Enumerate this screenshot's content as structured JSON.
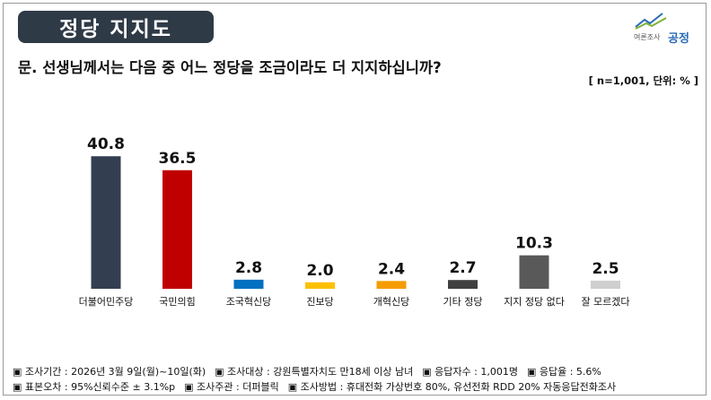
{
  "header": {
    "title": "정당 지지도",
    "logo_small": "여론조사",
    "logo_big": "공정",
    "question": "문. 선생님께서는 다음 중 어느 정당을 조금이라도 더 지지하십니까?",
    "sample_note": "[ n=1,001, 단위: % ]"
  },
  "chart_data": {
    "type": "bar",
    "categories": [
      "더불어민주당",
      "국민의힘",
      "조국혁신당",
      "진보당",
      "개혁신당",
      "기타 정당",
      "지지 정당 없다",
      "잘 모르겠다"
    ],
    "values": [
      40.8,
      36.5,
      2.8,
      2.0,
      2.4,
      2.7,
      10.3,
      2.5
    ],
    "value_labels": [
      "40.8",
      "36.5",
      "2.8",
      "2.0",
      "2.4",
      "2.7",
      "10.3",
      "2.5"
    ],
    "colors": [
      "#333f50",
      "#c00000",
      "#0070c0",
      "#ffc000",
      "#f59c00",
      "#404040",
      "#595959",
      "#cfcfcf"
    ],
    "ylim": [
      0,
      45
    ],
    "grid": false,
    "legend": "none"
  },
  "footer": {
    "row1": [
      "▣ 조사기간 : 2026년 3월 9일(월)~10일(화)",
      "▣ 조사대상 : 강원특별자치도 만18세 이상 남녀",
      "▣ 응답자수 : 1,001명",
      "▣ 응답율 : 5.6%"
    ],
    "row2": [
      "▣ 표본오차 : 95%신뢰수준 ± 3.1%p",
      "▣ 조사주관 : 더퍼블릭",
      "▣ 조사방법 : 휴대전화 가상번호 80%, 유선전화 RDD 20% 자동응답전화조사"
    ]
  }
}
